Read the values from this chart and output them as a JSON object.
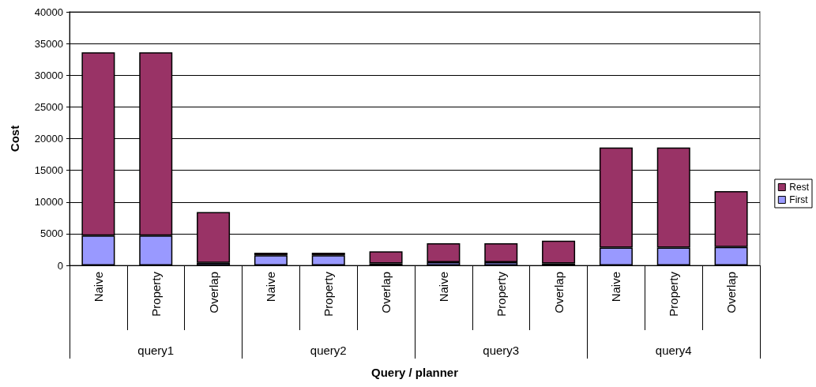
{
  "chart_data": {
    "type": "bar",
    "stacked": true,
    "xlabel": "Query / planner",
    "ylabel": "Cost",
    "categories": [
      "Naive",
      "Property",
      "Overlap",
      "Naive",
      "Property",
      "Overlap",
      "Naive",
      "Property",
      "Overlap",
      "Naive",
      "Property",
      "Overlap"
    ],
    "series": [
      {
        "name": "First",
        "color": "#9999ff",
        "values": [
          4700,
          4700,
          400,
          1600,
          1600,
          300,
          500,
          500,
          300,
          2800,
          2800,
          2900
        ]
      },
      {
        "name": "Rest",
        "color": "#993366",
        "values": [
          28900,
          28900,
          8000,
          400,
          400,
          1900,
          3000,
          3000,
          3600,
          15800,
          15800,
          8800
        ]
      }
    ],
    "annotations": [
      "query1",
      "query2",
      "query3",
      "query4"
    ],
    "ylim": [
      0,
      40000
    ],
    "yticks": [
      0,
      5000,
      10000,
      15000,
      20000,
      25000,
      30000,
      35000,
      40000
    ],
    "grid": "y",
    "legend": "right"
  }
}
